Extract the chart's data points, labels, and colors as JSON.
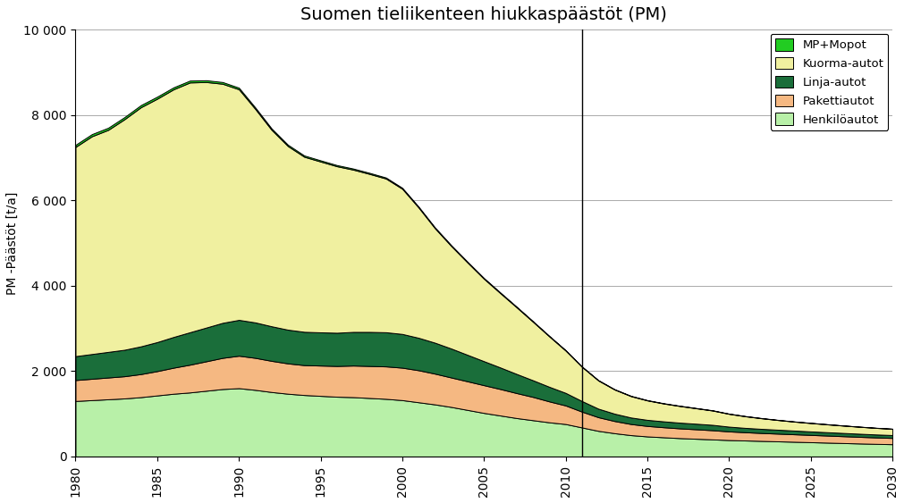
{
  "title": "Suomen tieliikenteen hiukkaspäästöt (PM)",
  "ylabel": "PM -Päästöt [t/a]",
  "ylim": [
    0,
    10000
  ],
  "yticks": [
    0,
    2000,
    4000,
    6000,
    8000,
    10000
  ],
  "vline_x": 2011,
  "legend_labels": [
    "MP+Mopot",
    "Kuorma-autot",
    "Linja-autot",
    "Pakettiautot",
    "Henkilöautot"
  ],
  "colors": [
    "#22cc22",
    "#f0f0a0",
    "#1a6e3a",
    "#f5b882",
    "#b8f0a8"
  ],
  "years": [
    1980,
    1981,
    1982,
    1983,
    1984,
    1985,
    1986,
    1987,
    1988,
    1989,
    1990,
    1991,
    1992,
    1993,
    1994,
    1995,
    1996,
    1997,
    1998,
    1999,
    2000,
    2001,
    2002,
    2003,
    2004,
    2005,
    2006,
    2007,
    2008,
    2009,
    2010,
    2011,
    2012,
    2013,
    2014,
    2015,
    2016,
    2017,
    2018,
    2019,
    2020,
    2021,
    2022,
    2023,
    2024,
    2025,
    2026,
    2027,
    2028,
    2029,
    2030
  ],
  "henkiloautot": [
    1300,
    1320,
    1340,
    1360,
    1390,
    1430,
    1470,
    1500,
    1540,
    1580,
    1600,
    1560,
    1510,
    1470,
    1440,
    1420,
    1400,
    1390,
    1370,
    1350,
    1320,
    1270,
    1220,
    1160,
    1090,
    1020,
    960,
    900,
    850,
    800,
    760,
    680,
    600,
    545,
    500,
    470,
    450,
    430,
    415,
    400,
    385,
    375,
    365,
    355,
    345,
    335,
    325,
    315,
    305,
    296,
    288
  ],
  "pakettiautot": [
    490,
    500,
    510,
    520,
    540,
    570,
    610,
    650,
    690,
    730,
    760,
    750,
    730,
    710,
    700,
    710,
    720,
    740,
    750,
    760,
    760,
    750,
    720,
    690,
    670,
    650,
    620,
    585,
    545,
    490,
    435,
    370,
    320,
    285,
    260,
    245,
    235,
    228,
    222,
    215,
    202,
    193,
    185,
    180,
    175,
    170,
    165,
    160,
    155,
    150,
    146
  ],
  "linjaautot": [
    560,
    580,
    600,
    620,
    650,
    680,
    720,
    760,
    790,
    820,
    840,
    830,
    810,
    790,
    780,
    778,
    778,
    788,
    798,
    800,
    790,
    760,
    725,
    678,
    620,
    562,
    505,
    448,
    390,
    342,
    294,
    248,
    200,
    172,
    153,
    143,
    138,
    134,
    130,
    126,
    112,
    102,
    97,
    92,
    87,
    82,
    79,
    76,
    73,
    70,
    68
  ],
  "kuormaautot": [
    4900,
    5100,
    5200,
    5400,
    5600,
    5700,
    5800,
    5850,
    5750,
    5600,
    5400,
    5000,
    4600,
    4300,
    4100,
    4000,
    3900,
    3800,
    3700,
    3600,
    3400,
    3050,
    2680,
    2400,
    2160,
    1930,
    1740,
    1560,
    1370,
    1180,
    990,
    800,
    660,
    565,
    500,
    455,
    418,
    390,
    362,
    335,
    300,
    272,
    248,
    227,
    210,
    197,
    184,
    173,
    163,
    154,
    146
  ],
  "mp_mopot": [
    50,
    50,
    50,
    50,
    50,
    48,
    46,
    44,
    42,
    40,
    38,
    36,
    34,
    32,
    30,
    28,
    27,
    26,
    25,
    24,
    23,
    22,
    21,
    20,
    19,
    18,
    17,
    16,
    15,
    13,
    12,
    10,
    9,
    8,
    8,
    7,
    7,
    6,
    6,
    6,
    5,
    5,
    5,
    4,
    4,
    4,
    4,
    3,
    3,
    3,
    3
  ]
}
